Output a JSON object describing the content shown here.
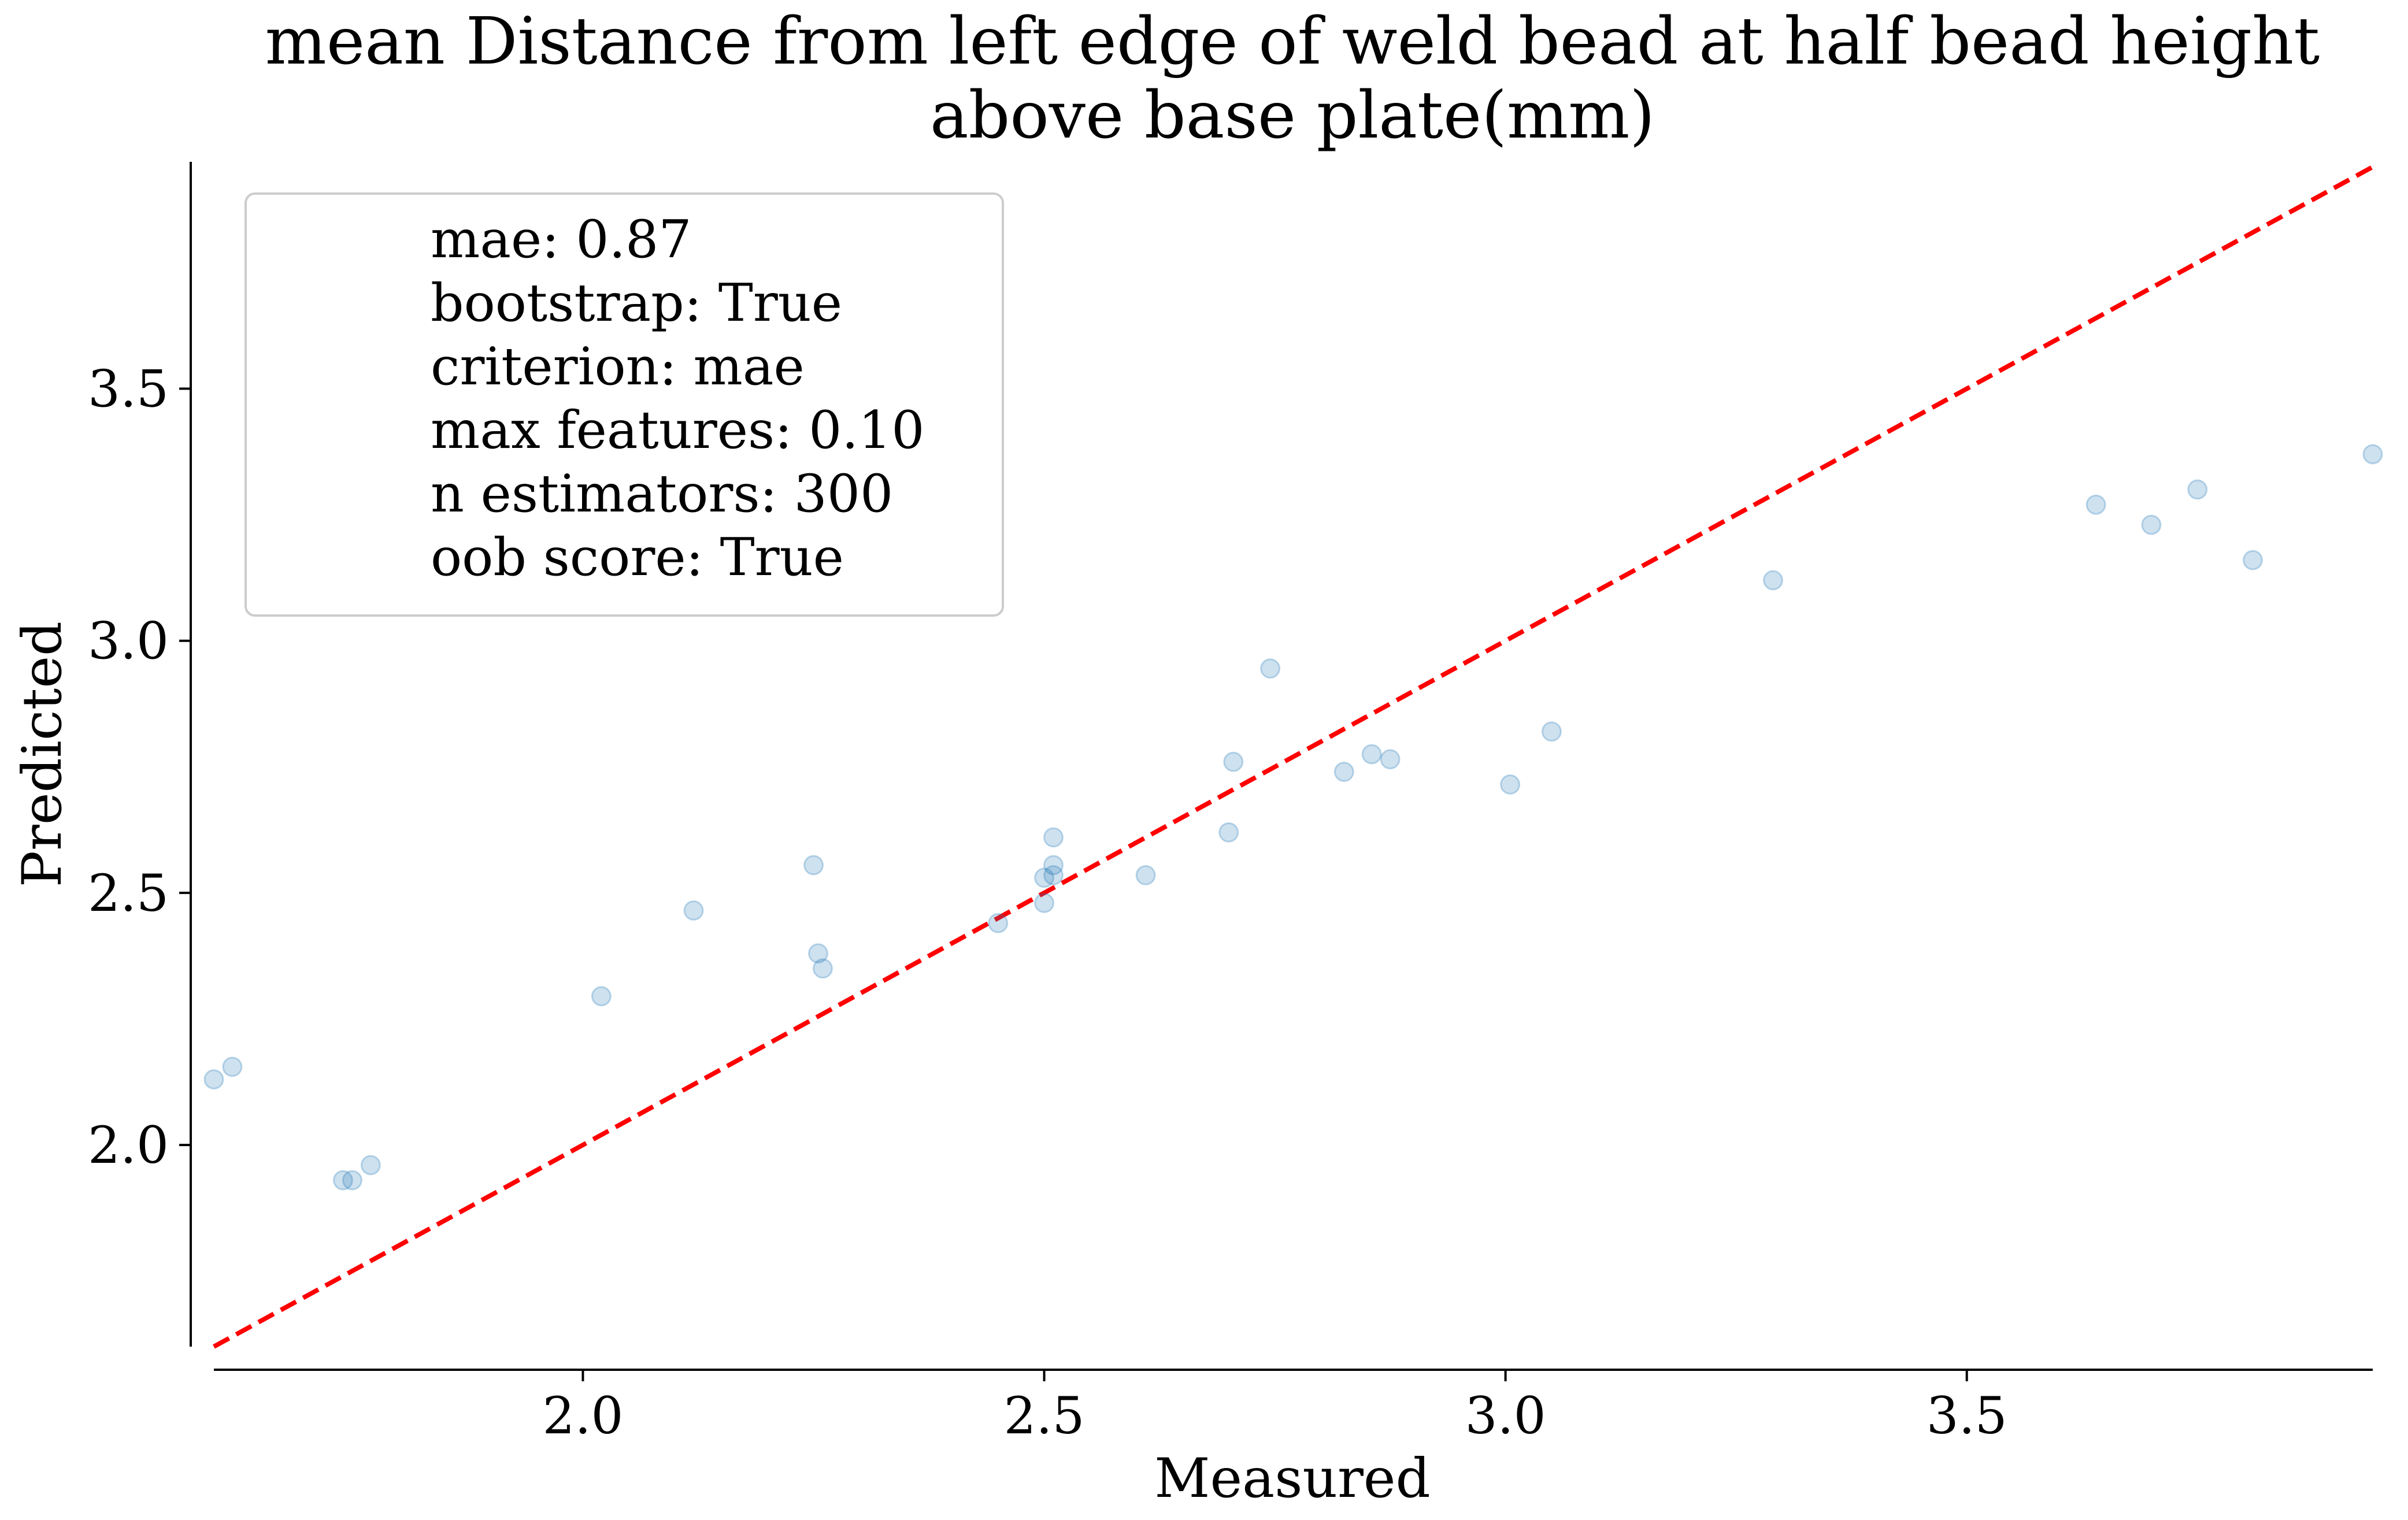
{
  "chart_data": {
    "type": "scatter",
    "title": "mean Distance from left edge of weld bead at half bead height\nabove base plate(mm)",
    "xlabel": "Measured",
    "ylabel": "Predicted",
    "xlim": [
      1.6,
      3.94
    ],
    "ylim": [
      1.6,
      3.95
    ],
    "xticks": [
      2.0,
      2.5,
      3.0,
      3.5
    ],
    "yticks": [
      2.0,
      2.5,
      3.0,
      3.5
    ],
    "xtick_labels": [
      "2.0",
      "2.5",
      "3.0",
      "3.5"
    ],
    "ytick_labels": [
      "2.0",
      "2.5",
      "3.0",
      "3.5"
    ],
    "grid": false,
    "points": {
      "x": [
        1.6,
        1.62,
        1.74,
        1.75,
        1.77,
        2.02,
        2.12,
        2.25,
        2.255,
        2.26,
        2.45,
        2.5,
        2.5,
        2.51,
        2.51,
        2.51,
        2.61,
        2.7,
        2.705,
        2.745,
        2.825,
        2.855,
        2.875,
        3.005,
        3.05,
        3.29,
        3.64,
        3.7,
        3.75,
        3.81,
        3.94
      ],
      "y": [
        2.13,
        2.155,
        1.93,
        1.93,
        1.96,
        2.295,
        2.465,
        2.555,
        2.38,
        2.35,
        2.44,
        2.48,
        2.53,
        2.535,
        2.555,
        2.61,
        2.535,
        2.62,
        2.76,
        2.945,
        2.74,
        2.775,
        2.765,
        2.715,
        2.82,
        3.12,
        3.27,
        3.23,
        3.3,
        3.16,
        3.37
      ],
      "color": "#1f77b4",
      "alpha": 0.22
    },
    "reference_line": {
      "x": [
        1.6,
        3.94
      ],
      "y": [
        1.6,
        3.94
      ],
      "color": "#ff0000",
      "style": "dashed"
    },
    "legend": {
      "placement": "top-left",
      "entries": [
        "mae: 0.87",
        "bootstrap: True",
        "criterion: mae",
        "max features: 0.10",
        "n estimators: 300",
        "oob score: True"
      ]
    }
  }
}
